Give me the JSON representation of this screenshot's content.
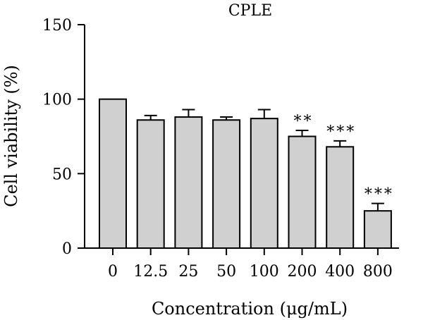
{
  "chart_data": {
    "type": "bar",
    "title": "CPLE",
    "xlabel": "Concentration (μg/mL)",
    "ylabel": "Cell viability (%)",
    "categories": [
      "0",
      "12.5",
      "25",
      "50",
      "100",
      "200",
      "400",
      "800"
    ],
    "values": [
      100,
      86,
      88,
      86,
      87,
      75,
      68,
      25
    ],
    "error": [
      0,
      3,
      5,
      2,
      6,
      4,
      4,
      5
    ],
    "significance": [
      "",
      "",
      "",
      "",
      "",
      "**",
      "***",
      "***"
    ],
    "ylim": [
      0,
      150
    ],
    "yticks": [
      0,
      50,
      100,
      150
    ],
    "grid": false,
    "colors": {
      "bar_fill": "#d0d0d0",
      "bar_stroke": "#000000"
    }
  }
}
